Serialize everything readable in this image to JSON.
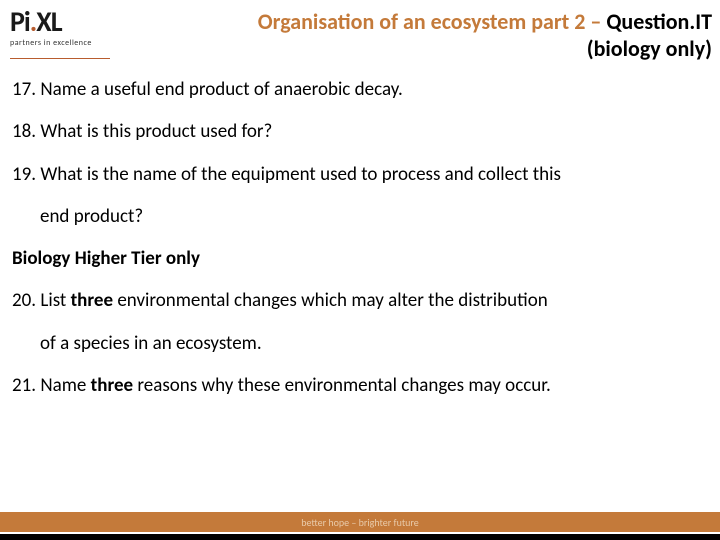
{
  "logo": {
    "main_pre": "Pi",
    "main_dot": ".",
    "main_post": "XL",
    "sub": "partners in excellence"
  },
  "title": {
    "orange_part": "Organisation of an ecosystem part 2 – ",
    "black_part": "Question.IT",
    "line2": "(biology only)"
  },
  "questions": {
    "q17": "17. Name a useful end product of anaerobic decay.",
    "q18": "18. What is this product used for?",
    "q19a": "19. What is the name of the equipment used to process and collect this",
    "q19b": "end product?",
    "section": "Biology Higher Tier only",
    "q20a_pre": "20. List ",
    "q20a_bold": "three",
    "q20a_post": " environmental changes which may alter the distribution",
    "q20b": "of a species in an ecosystem.",
    "q21_pre": "21. Name ",
    "q21_bold": "three",
    "q21_post": " reasons why these environmental changes may occur."
  },
  "footer": {
    "text": "better hope – brighter future"
  },
  "colors": {
    "orange": "#c47a3a",
    "black": "#000000",
    "white": "#ffffff"
  }
}
